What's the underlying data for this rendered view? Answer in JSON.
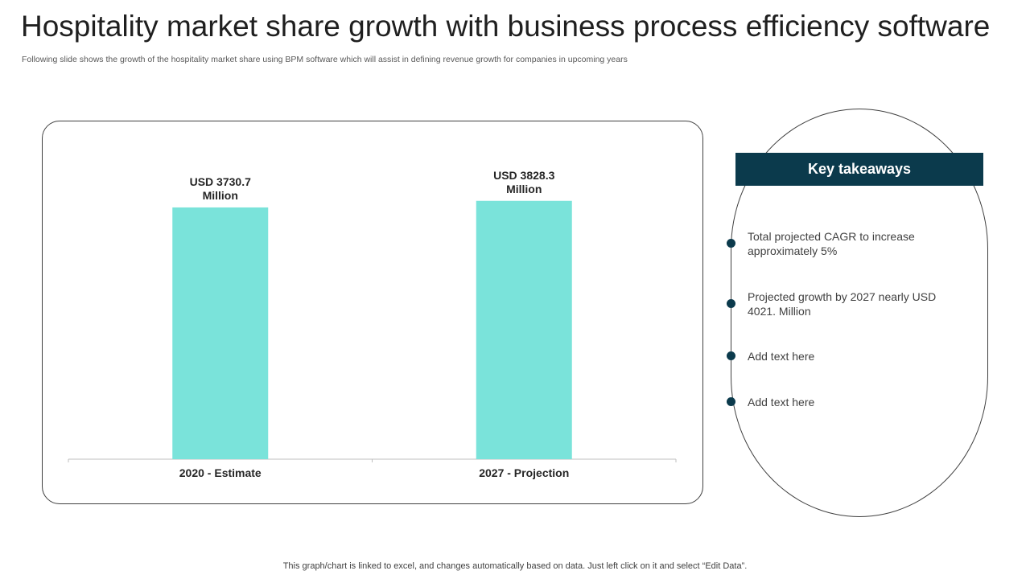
{
  "page": {
    "title": "Hospitality market share growth with business process efficiency software",
    "subtitle": "Following slide shows the growth of the hospitality market share using BPM software which will assist in defining revenue growth for companies in upcoming years",
    "footnote": "This graph/chart is linked to excel,  and changes automatically based on data. Just left click on it and select “Edit Data”."
  },
  "chart_data": {
    "type": "bar",
    "title": "",
    "xlabel": "",
    "ylabel": "",
    "categories": [
      "2020 - Estimate",
      "2027 - Projection"
    ],
    "values": [
      3730.7,
      3828.3
    ],
    "data_labels": [
      [
        "USD 3730.7",
        "Million"
      ],
      [
        "USD 3828.3",
        "Million"
      ]
    ],
    "ylim": [
      0,
      4600
    ],
    "grid": false,
    "bar_color": "#7ae3da"
  },
  "takeaways": {
    "header": "Key takeaways",
    "items": [
      "Total projected CAGR to increase approximately  5%",
      "Projected growth by 2027 nearly USD 4021. Million",
      "Add text here",
      "Add text here"
    ]
  },
  "colors": {
    "accent_dark": "#0b3a4c",
    "bar": "#7ae3da"
  }
}
